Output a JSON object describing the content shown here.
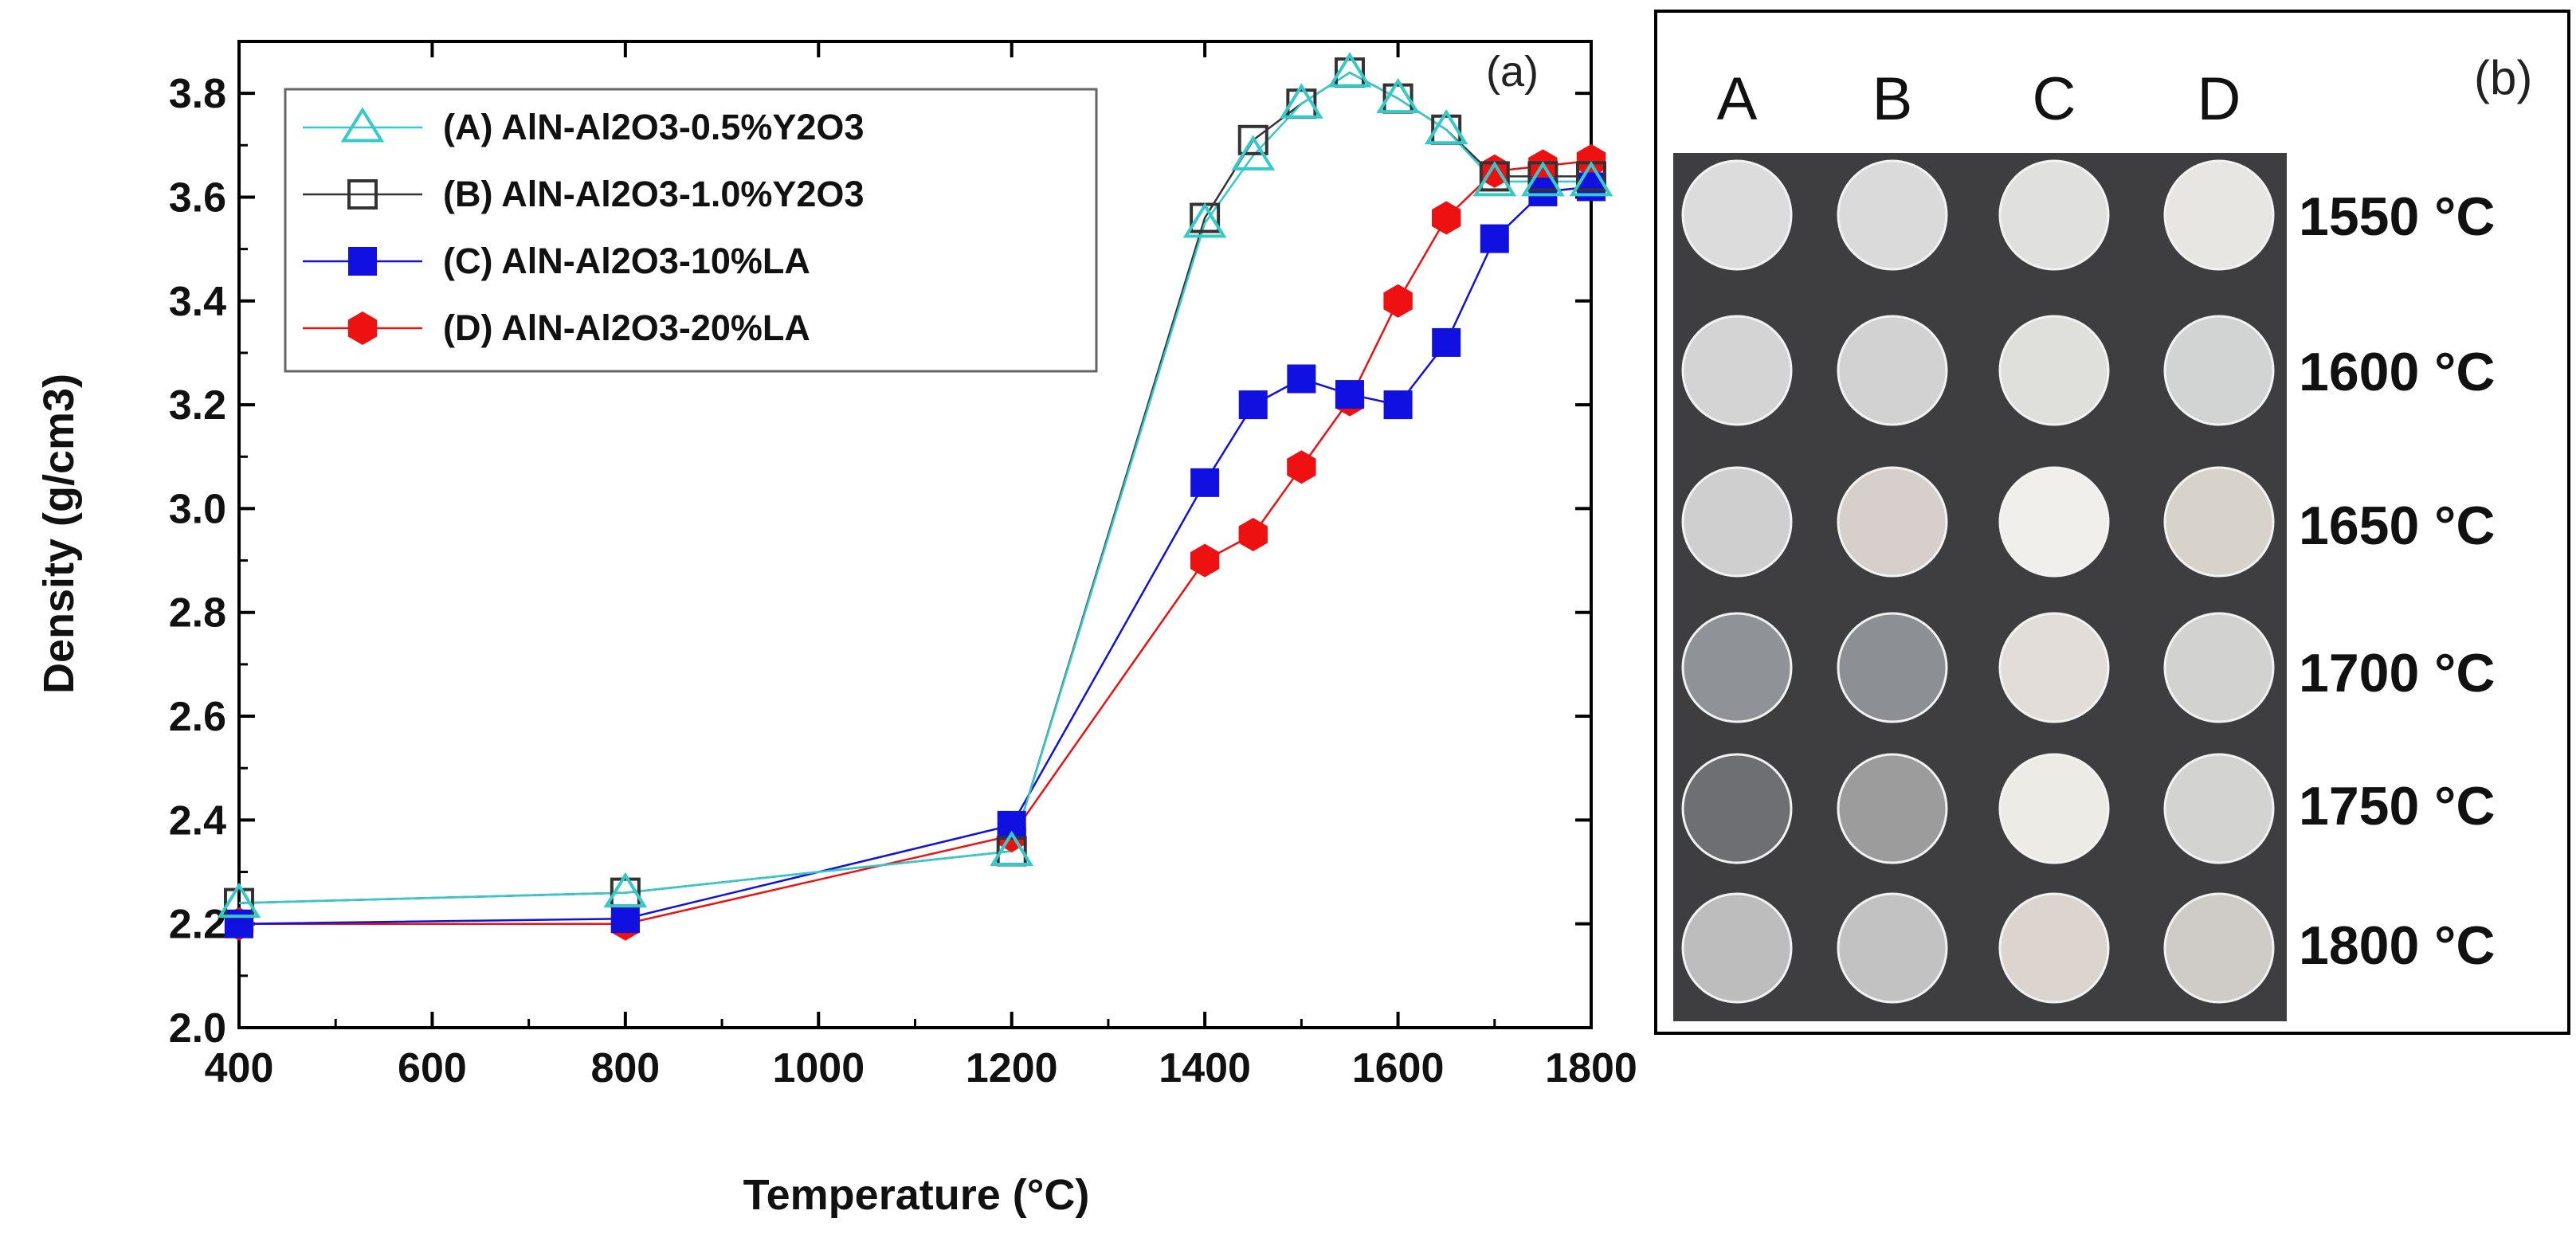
{
  "chart_data": [
    {
      "type": "line",
      "panel_label": "(a)",
      "xlabel": "Temperature (°C)",
      "ylabel": "Density (g/cm3)",
      "xlim": [
        400,
        1800
      ],
      "ylim": [
        2.0,
        3.9
      ],
      "xticks": [
        400,
        600,
        800,
        1000,
        1200,
        1400,
        1600,
        1800
      ],
      "xtick_labels": [
        "400",
        "600",
        "800",
        "1000",
        "1200",
        "1400",
        "1600",
        "1800"
      ],
      "yticks": [
        2.0,
        2.2,
        2.4,
        2.6,
        2.8,
        3.0,
        3.2,
        3.4,
        3.6,
        3.8
      ],
      "ytick_labels": [
        "2.0",
        "2.2",
        "2.4",
        "2.6",
        "2.8",
        "3.0",
        "3.2",
        "3.4",
        "3.6",
        "3.8"
      ],
      "legend_position": "top-left",
      "series": [
        {
          "name": "(A) AlN-Al2O3-0.5%Y2O3",
          "marker": "triangle-open",
          "color": "#35c9c9",
          "x": [
            400,
            800,
            1200,
            1400,
            1450,
            1500,
            1550,
            1600,
            1650,
            1700,
            1750,
            1800
          ],
          "y": [
            2.24,
            2.26,
            2.34,
            3.55,
            3.68,
            3.78,
            3.84,
            3.79,
            3.73,
            3.63,
            3.63,
            3.63
          ]
        },
        {
          "name": "(B) AlN-Al2O3-1.0%Y2O3",
          "marker": "square-open",
          "color": "#333333",
          "x": [
            400,
            800,
            1200,
            1400,
            1450,
            1500,
            1550,
            1600,
            1650,
            1700,
            1750,
            1800
          ],
          "y": [
            2.24,
            2.26,
            2.34,
            3.56,
            3.71,
            3.78,
            3.84,
            3.79,
            3.73,
            3.64,
            3.64,
            3.64
          ]
        },
        {
          "name": "(C) AlN-Al2O3-10%LA",
          "marker": "square-filled",
          "color": "#1010e0",
          "x": [
            400,
            800,
            1200,
            1400,
            1450,
            1500,
            1550,
            1600,
            1650,
            1700,
            1750,
            1800
          ],
          "y": [
            2.2,
            2.21,
            2.39,
            3.05,
            3.2,
            3.25,
            3.22,
            3.2,
            3.32,
            3.52,
            3.61,
            3.62
          ]
        },
        {
          "name": "(D) AlN-Al2O3-20%LA",
          "marker": "hexagon-filled",
          "color": "#ee1111",
          "x": [
            400,
            800,
            1200,
            1400,
            1450,
            1500,
            1550,
            1600,
            1650,
            1700,
            1750,
            1800
          ],
          "y": [
            2.2,
            2.2,
            2.37,
            2.9,
            2.95,
            3.08,
            3.21,
            3.4,
            3.56,
            3.65,
            3.66,
            3.67
          ]
        }
      ]
    }
  ],
  "photo_panel": {
    "label": "(b)",
    "columns": [
      "A",
      "B",
      "C",
      "D"
    ],
    "rows": [
      "1550 °C",
      "1600 °C",
      "1650 °C",
      "1700 °C",
      "1750 °C",
      "1800 °C"
    ],
    "background_color": "#3e3e40",
    "sample_colors": [
      [
        "#dcdcdc",
        "#dadada",
        "#e0e0de",
        "#e7e6e2"
      ],
      [
        "#d4d4d4",
        "#d2d2d2",
        "#dfdfdb",
        "#d2d4d4"
      ],
      [
        "#cfcfcf",
        "#d6cfcb",
        "#f0efeb",
        "#d7d2ca"
      ],
      [
        "#8f9296",
        "#8c8f94",
        "#e2ddd8",
        "#d2d2d0"
      ],
      [
        "#6e6f72",
        "#9c9c9c",
        "#ecebe5",
        "#d3d4d2"
      ],
      [
        "#bdbdbd",
        "#c2c2c2",
        "#dbd4cf",
        "#cfcbc6"
      ]
    ]
  }
}
